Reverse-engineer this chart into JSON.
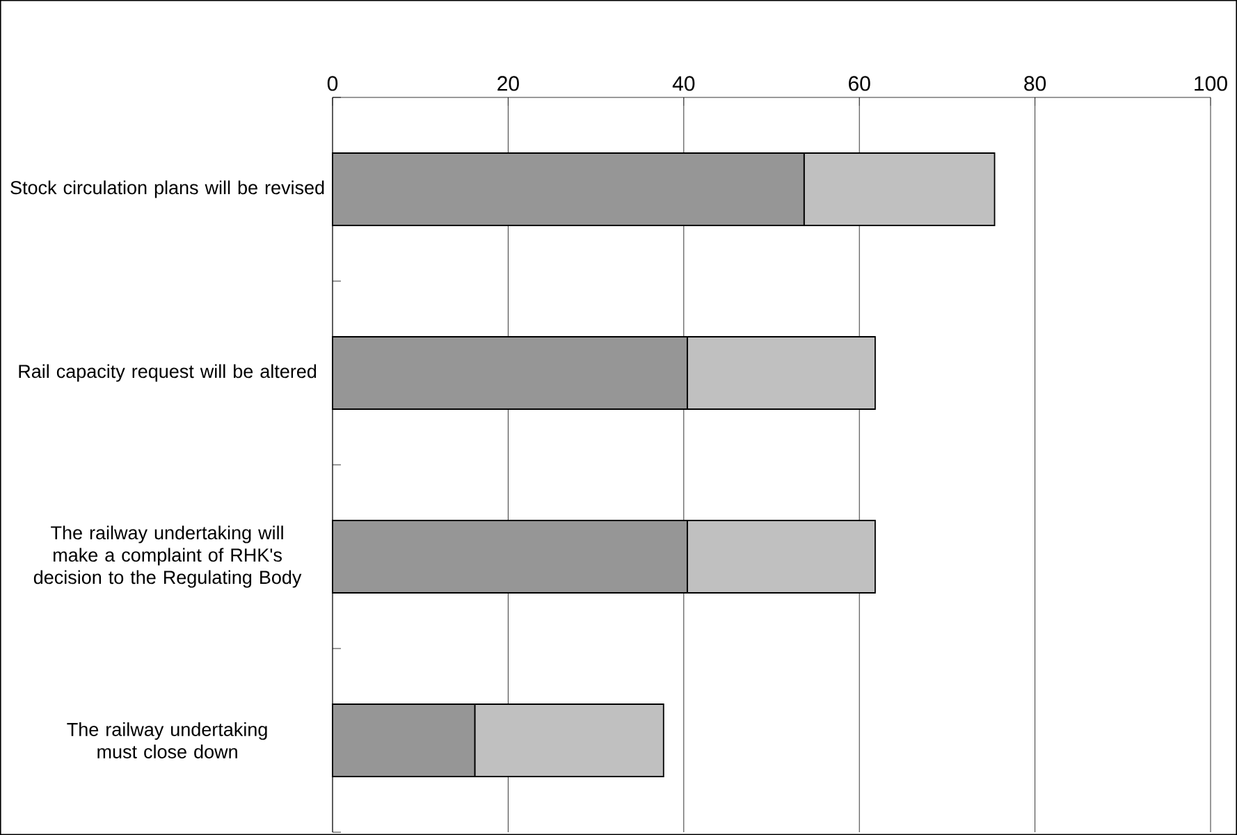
{
  "chart_data": {
    "type": "bar",
    "orientation": "horizontal",
    "stacked": true,
    "categories": [
      "Stock circulation plans will be revised",
      "Rail capacity request will be altered",
      "The railway undertaking will make a complaint of RHK's decision to the Regulating Body",
      "The railway undertaking must close down"
    ],
    "series": [
      {
        "color": "#969696",
        "values": [
          53.7,
          40.4,
          40.4,
          16.2
        ]
      },
      {
        "color": "#c0c0c0",
        "values": [
          21.7,
          21.4,
          21.4,
          21.5
        ]
      }
    ],
    "xlim": [
      0,
      100
    ],
    "xticks": [
      0,
      20,
      40,
      60,
      80,
      100
    ],
    "grid": "x"
  }
}
